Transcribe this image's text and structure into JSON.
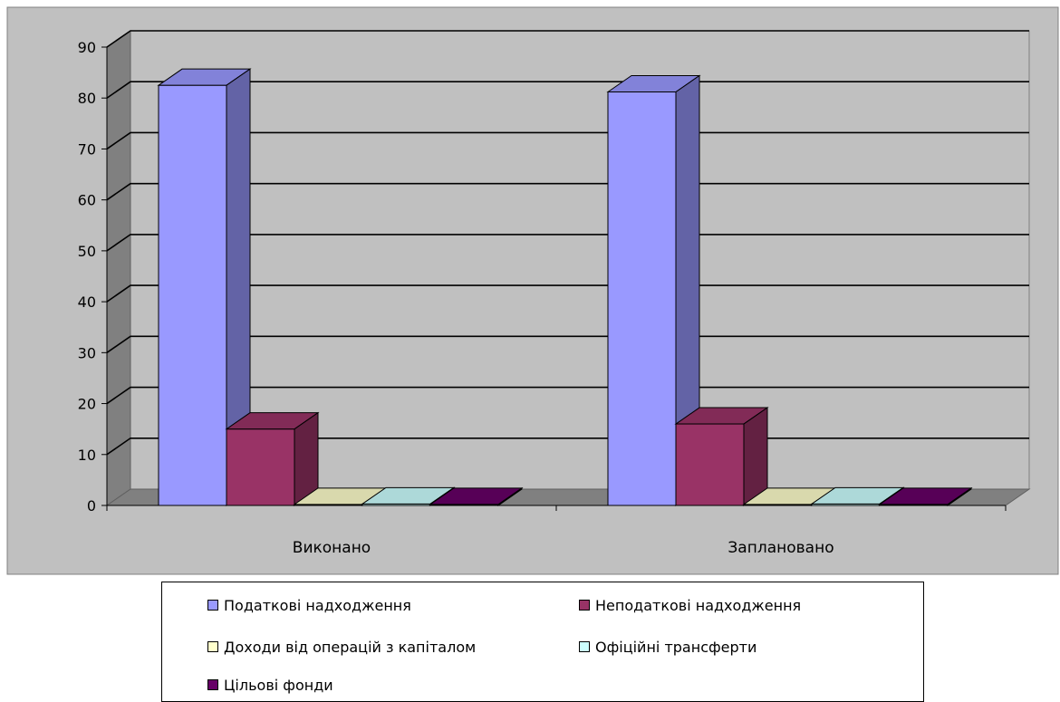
{
  "chart_data": {
    "type": "bar",
    "categories": [
      "Виконано",
      "Заплановано"
    ],
    "series": [
      {
        "name": "Податкові надходження",
        "values": [
          82.5,
          81.2
        ],
        "color": "#9999FF"
      },
      {
        "name": "Неподаткові надходження",
        "values": [
          15.0,
          16.0
        ],
        "color": "#993366"
      },
      {
        "name": "Доходи від операцій з капіталом",
        "values": [
          0.2,
          0.2
        ],
        "color": "#FFFFCC"
      },
      {
        "name": "Офіційні трансферти",
        "values": [
          0.3,
          0.3
        ],
        "color": "#CCFFFF"
      },
      {
        "name": "Цільові фонди",
        "values": [
          0.2,
          0.2
        ],
        "color": "#660066"
      }
    ],
    "title": "",
    "xlabel": "",
    "ylabel": "",
    "ylim": [
      0,
      90
    ],
    "yticks": [
      "0",
      "10",
      "20",
      "30",
      "40",
      "50",
      "60",
      "70",
      "80",
      "90"
    ],
    "grid": true,
    "legend_position": "bottom",
    "colors": {
      "plot_background": "#C0C0C0",
      "frame_background": "#C0C0C0",
      "gridline": "#000000"
    }
  }
}
